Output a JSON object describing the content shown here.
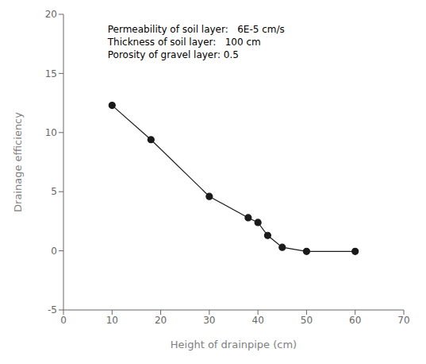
{
  "chart_data": {
    "type": "line",
    "x": [
      10,
      18,
      30,
      38,
      40,
      42,
      45,
      50,
      60
    ],
    "values": [
      12.3,
      9.4,
      4.6,
      2.8,
      2.4,
      1.3,
      0.3,
      -0.05,
      -0.05
    ],
    "xlabel": "Height of drainpipe (cm)",
    "ylabel": "Drainage efficiency",
    "xlim": [
      0,
      70
    ],
    "ylim": [
      -5,
      20
    ],
    "xticks": [
      0,
      10,
      20,
      30,
      40,
      50,
      60,
      70
    ],
    "yticks": [
      -5,
      0,
      5,
      10,
      15,
      20
    ],
    "annotations": [
      "Permeability of soil layer:   6E-5 cm/s",
      "Thickness of soil layer:   100 cm",
      "Porosity of gravel layer: 0.5"
    ],
    "color": "#1a1a1a",
    "marker": "circle",
    "grid": false
  }
}
